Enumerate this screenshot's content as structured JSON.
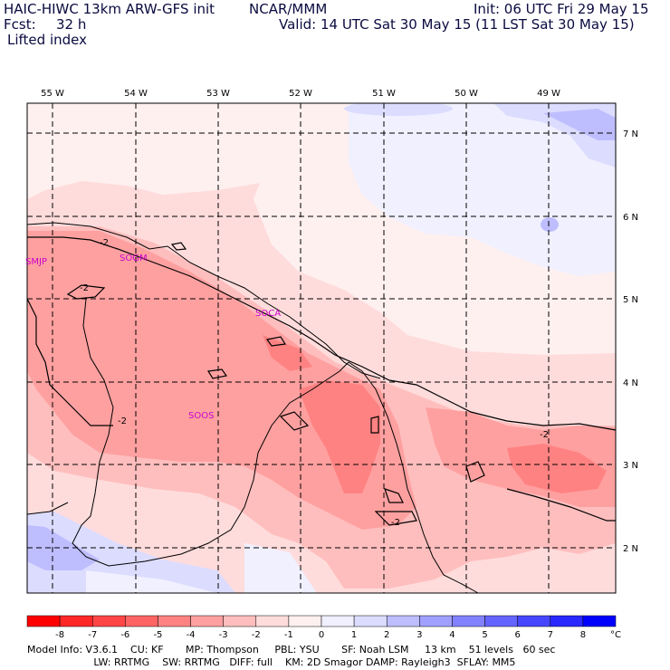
{
  "header": {
    "model_title": "HAIC-HIWC 13km ARW-GFS init",
    "center": "NCAR/MMM",
    "init": "Init: 06 UTC Fri 29 May 15",
    "fcst_label": "Fcst:",
    "fcst_value": "32 h",
    "valid": "Valid: 14 UTC Sat 30 May 15 (11 LST Sat 30 May 15)",
    "field": "Lifted index"
  },
  "map": {
    "lon_labels": [
      "55 W",
      "54 W",
      "53 W",
      "52 W",
      "51 W",
      "50 W",
      "49 W"
    ],
    "lat_labels": [
      "7 N",
      "6 N",
      "5 N",
      "4 N",
      "3 N",
      "2 N"
    ],
    "stations": [
      "SMJP",
      "SOGM",
      "SOCA",
      "SOOS"
    ],
    "contour_label": "-2"
  },
  "colorbar": {
    "ticks": [
      "-8",
      "-7",
      "-6",
      "-5",
      "-4",
      "-3",
      "-2",
      "-1",
      "0",
      "1",
      "2",
      "3",
      "4",
      "5",
      "6",
      "7",
      "8"
    ],
    "unit": "°C",
    "colors": [
      "#ff0000",
      "#ff2828",
      "#ff4646",
      "#ff6464",
      "#ff8282",
      "#ffa0a0",
      "#ffbebe",
      "#ffdcdc",
      "#fff0f0",
      "#f0f0ff",
      "#dcdcff",
      "#bebeff",
      "#a0a0ff",
      "#8282ff",
      "#6464ff",
      "#4646ff",
      "#2828ff",
      "#0000ff"
    ]
  },
  "footer": {
    "line1": "Model Info: V3.6.1    CU: KF       MP: Thompson     PBL: YSU       SF: Noah LSM     13 km    51 levels   60 sec",
    "line2": "                     LW: RRTMG    SW: RRTMG   DIFF: full    KM: 2D Smagor DAMP: Rayleigh3  SFLAY: MM5"
  }
}
